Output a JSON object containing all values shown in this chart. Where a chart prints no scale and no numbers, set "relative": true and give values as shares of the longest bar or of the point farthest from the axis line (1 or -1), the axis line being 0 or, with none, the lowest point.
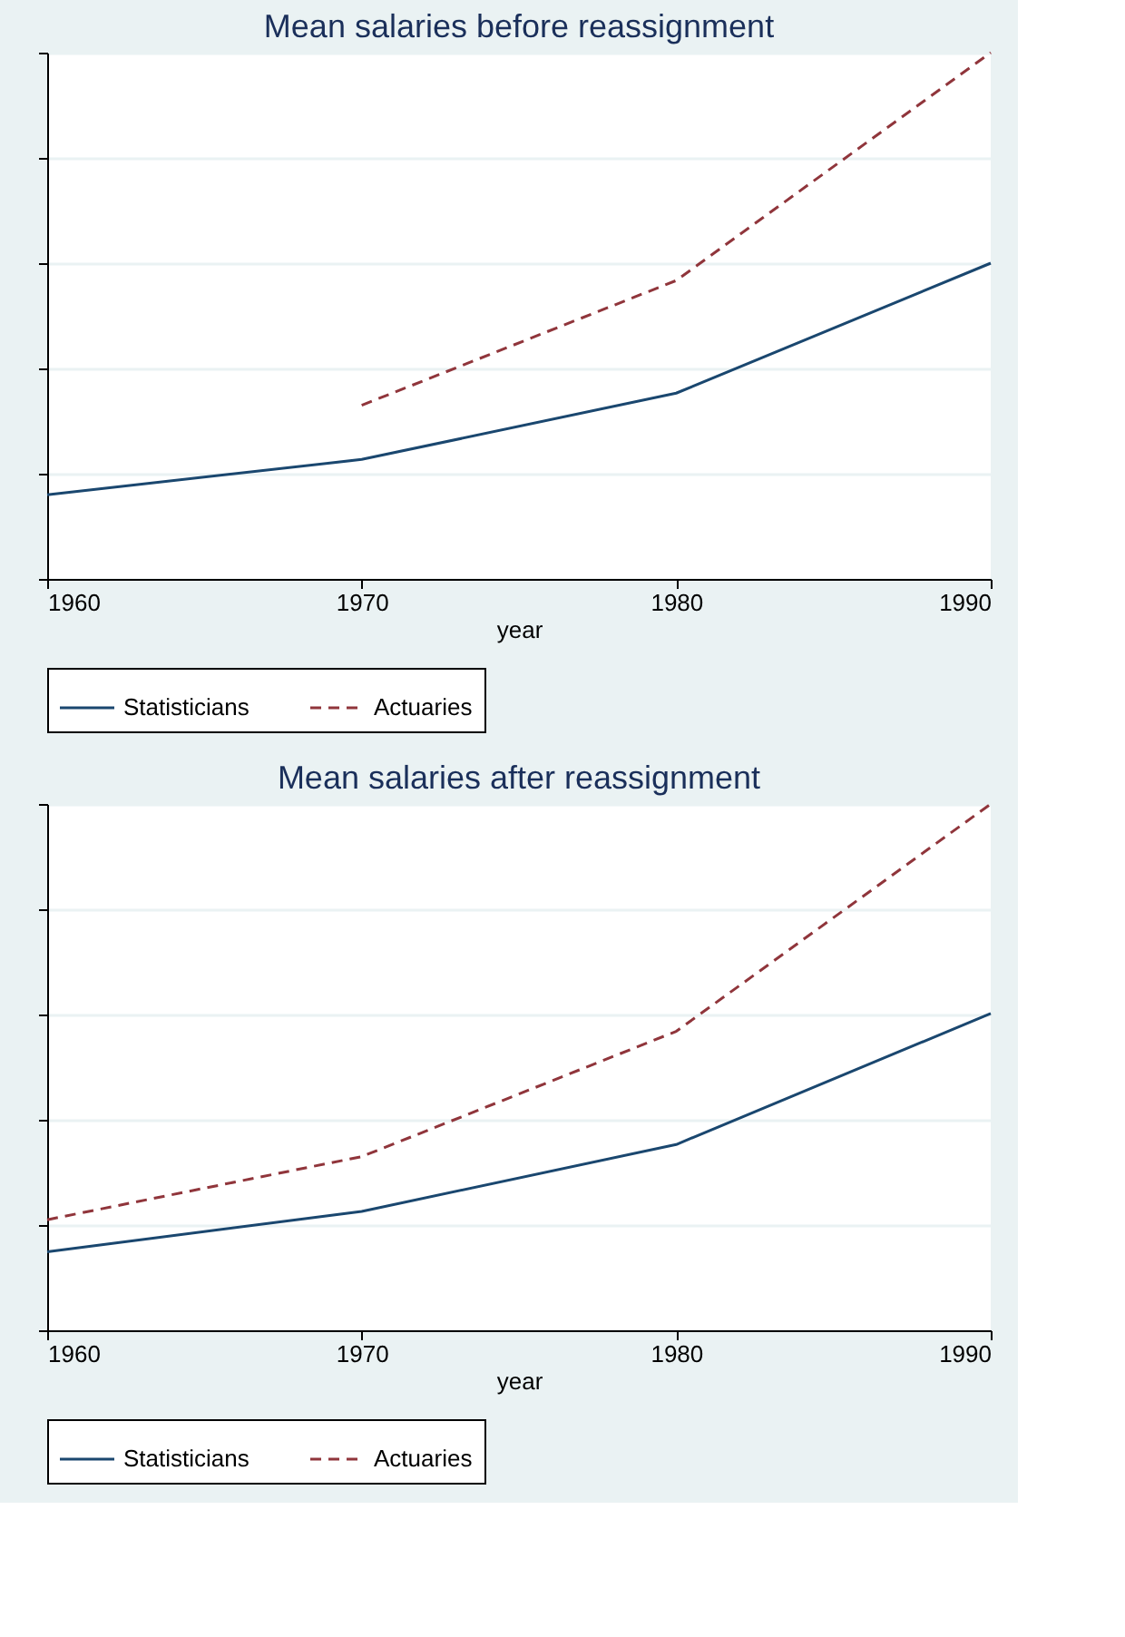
{
  "chart_data": [
    {
      "type": "line",
      "title": "Mean salaries before reassignment",
      "xlabel": "year",
      "x": [
        1960,
        1970,
        1980,
        1990
      ],
      "xlim": [
        1960,
        1990
      ],
      "xticks": [
        1960,
        1970,
        1980,
        1990
      ],
      "relative": true,
      "grid": "y",
      "legend": "bottom",
      "tick_labels": "x",
      "series": [
        {
          "name": "Statisticians",
          "color": "#1a476f",
          "line_style": "solid",
          "values": [
            0.16,
            0.227,
            0.353,
            0.6
          ]
        },
        {
          "name": "Actuaries",
          "color": "#90353b",
          "line_style": "dashed",
          "values": [
            null,
            0.33,
            0.567,
            1
          ]
        }
      ]
    },
    {
      "type": "line",
      "title": "Mean salaries after reassignment",
      "xlabel": "year",
      "x": [
        1960,
        1970,
        1980,
        1990
      ],
      "xlim": [
        1960,
        1990
      ],
      "xticks": [
        1960,
        1970,
        1980,
        1990
      ],
      "relative": true,
      "grid": "y",
      "legend": "bottom",
      "tick_labels": "x",
      "series": [
        {
          "name": "Statisticians",
          "color": "#1a476f",
          "line_style": "solid",
          "values": [
            0.149,
            0.226,
            0.353,
            0.602
          ]
        },
        {
          "name": "Actuaries",
          "color": "#90353b",
          "line_style": "dashed",
          "values": [
            0.21,
            0.33,
            0.568,
            1
          ]
        }
      ]
    }
  ]
}
